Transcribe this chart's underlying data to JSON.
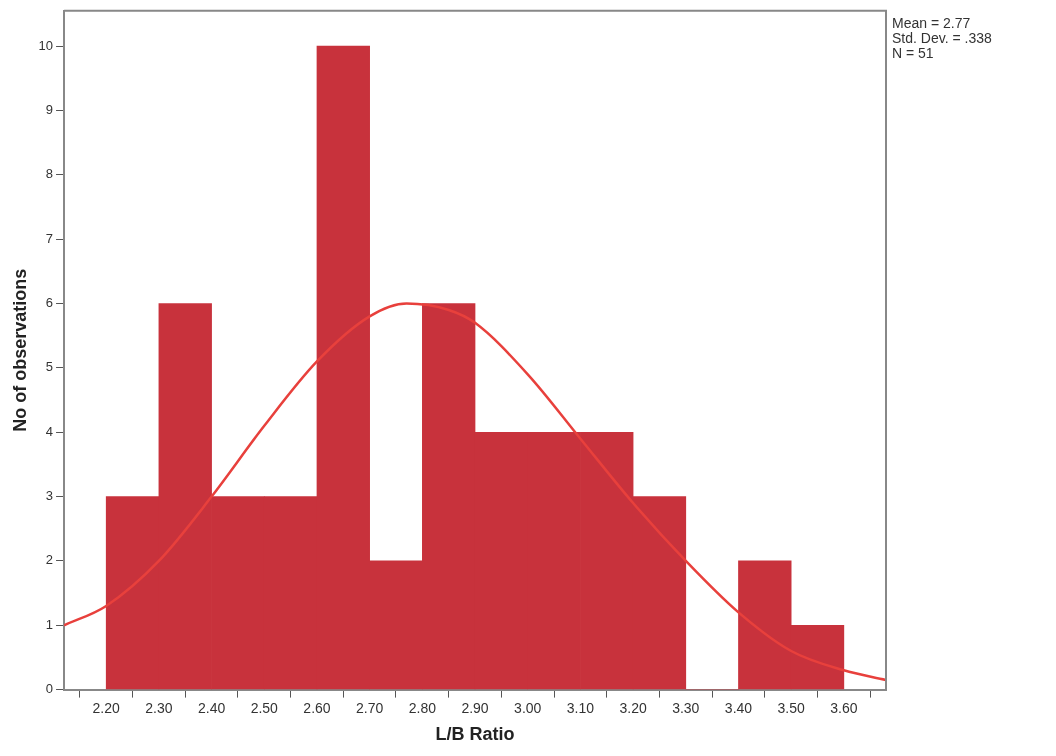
{
  "chart_data": {
    "type": "histogram",
    "xlabel": "L/B Ratio",
    "ylabel": "No of observations",
    "bins": [
      2.2,
      2.3,
      2.4,
      2.5,
      2.6,
      2.7,
      2.8,
      2.9,
      3.0,
      3.1,
      3.2,
      3.3,
      3.4,
      3.5,
      3.6
    ],
    "values": [
      3,
      6,
      3,
      3,
      10,
      2,
      6,
      4,
      4,
      4,
      3,
      0,
      2,
      1
    ],
    "color": "#c8323c",
    "series": [
      {
        "type": "line",
        "color": "#e8403c",
        "x": [
          2.12,
          2.2,
          2.3,
          2.4,
          2.5,
          2.6,
          2.7,
          2.77,
          2.85,
          2.9,
          3.0,
          3.1,
          3.2,
          3.3,
          3.4,
          3.5,
          3.6,
          3.68
        ],
        "values": [
          1.0,
          1.3,
          2.0,
          3.0,
          4.1,
          5.1,
          5.8,
          6.0,
          5.9,
          5.7,
          4.9,
          3.9,
          2.9,
          2.0,
          1.2,
          0.6,
          0.3,
          0.15
        ]
      }
    ],
    "xlim": [
      2.12,
      3.68
    ],
    "xticks": [
      {
        "value": 2.2,
        "label": "2.20"
      },
      {
        "value": 2.3,
        "label": "2.30"
      },
      {
        "value": 2.4,
        "label": "2.40"
      },
      {
        "value": 2.5,
        "label": "2.50"
      },
      {
        "value": 2.6,
        "label": "2.60"
      },
      {
        "value": 2.7,
        "label": "2.70"
      },
      {
        "value": 2.8,
        "label": "2.80"
      },
      {
        "value": 2.9,
        "label": "2.90"
      },
      {
        "value": 3.0,
        "label": "3.00"
      },
      {
        "value": 3.1,
        "label": "3.10"
      },
      {
        "value": 3.2,
        "label": "3.20"
      },
      {
        "value": 3.3,
        "label": "3.30"
      },
      {
        "value": 3.4,
        "label": "3.40"
      },
      {
        "value": 3.5,
        "label": "3.50"
      },
      {
        "value": 3.6,
        "label": "3.60"
      }
    ],
    "ylim": [
      0,
      10.55
    ],
    "yticks": [
      0,
      1,
      2,
      3,
      4,
      5,
      6,
      7,
      8,
      9,
      10
    ],
    "grid": false,
    "legend": false,
    "annotations": [
      "Mean = 2.77",
      "Std. Dev. = .338",
      "N = 51"
    ]
  }
}
